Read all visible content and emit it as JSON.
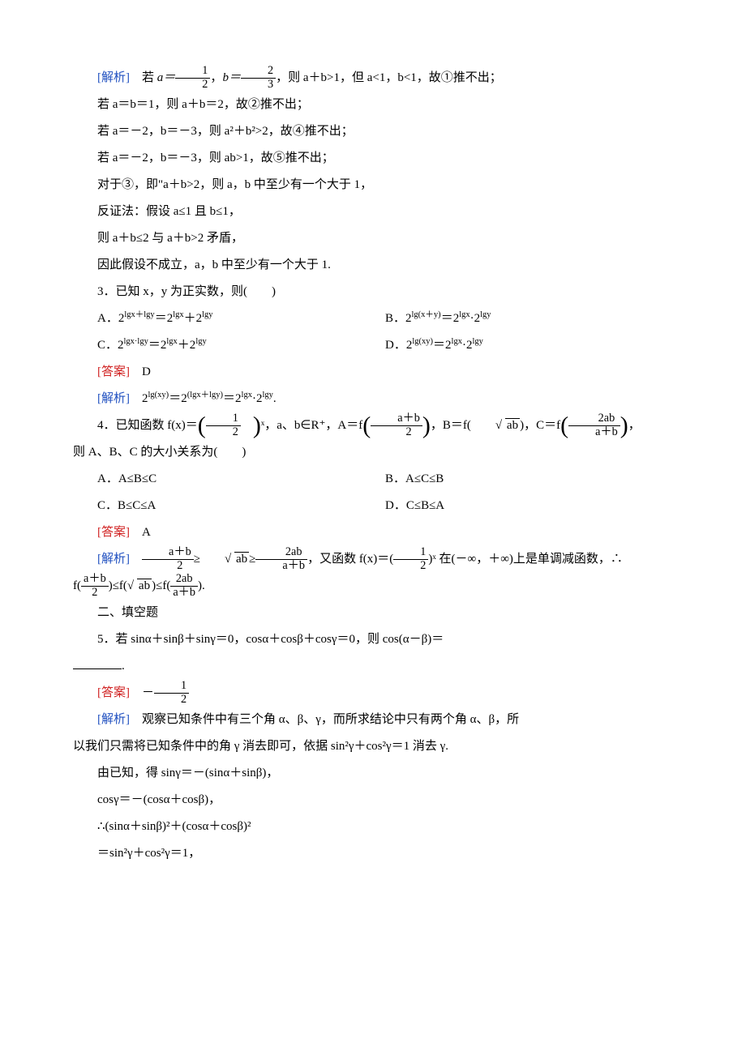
{
  "labels": {
    "analysis": "[解析]",
    "answer": "[答案]"
  },
  "q2_analysis": {
    "l1_pre": "若 ",
    "l1_a_eq": "a＝",
    "l1_frac1_num": "1",
    "l1_frac1_den": "2",
    "l1_sep": "，",
    "l1_b_eq": "b＝",
    "l1_frac2_num": "2",
    "l1_frac2_den": "3",
    "l1_post": "，则 a＋b>1，但 a<1，b<1，故①推不出；",
    "l2": "若 a＝b＝1，则 a＋b＝2，故②推不出；",
    "l3": "若 a＝－2，b＝－3，则 a²＋b²>2，故④推不出；",
    "l4": "若 a＝－2，b＝－3，则 ab>1，故⑤推不出；",
    "l5": "对于③，即\"a＋b>2，则 a，b 中至少有一个大于 1，",
    "l6": "反证法：假设 a≤1 且 b≤1，",
    "l7": "则 a＋b≤2 与 a＋b>2 矛盾，",
    "l8": "因此假设不成立，a，b 中至少有一个大于 1."
  },
  "q3": {
    "stem": "3．已知 x，y 为正实数，则(　　)",
    "optA_pre": "A．2",
    "optA_sup1": "lgx＋lgy",
    "optA_mid": "＝2",
    "optA_sup2": "lgx",
    "optA_plus": "＋2",
    "optA_sup3": "lgy",
    "optB_pre": "B．2",
    "optB_sup1": "lg(x＋y)",
    "optB_mid": "＝2",
    "optB_sup2": "lgx",
    "optB_dot": "·2",
    "optB_sup3": "lgy",
    "optC_pre": "C．2",
    "optC_sup1": "lgx·lgy",
    "optC_mid": "＝2",
    "optC_sup2": "lgx",
    "optC_plus": "＋2",
    "optC_sup3": "lgy",
    "optD_pre": "D．2",
    "optD_sup1": "lg(xy)",
    "optD_mid": "＝2",
    "optD_sup2": "lgx",
    "optD_dot": "·2",
    "optD_sup3": "lgy",
    "answer": "D",
    "exp_pre": "2",
    "exp_sup1": "lg(xy)",
    "exp_eq1": "＝2",
    "exp_sup2": "(lgx＋lgy)",
    "exp_eq2": "＝2",
    "exp_sup3": "lgx",
    "exp_dot": "·2",
    "exp_sup4": "lgy",
    "exp_end": "."
  },
  "q4": {
    "stem_pre": "4．已知函数 f(x)＝",
    "frac_half_num": "1",
    "frac_half_den": "2",
    "stem_mid1": "ˣ，a、b∈R⁺，A＝f",
    "fracA_num": "a＋b",
    "fracA_den": "2",
    "stem_mid2": "，B＝f(",
    "sqrt_ab": "ab",
    "stem_mid3": ")，C＝f",
    "fracC_num": "2ab",
    "fracC_den": "a＋b",
    "stem_end": "，",
    "line2": "则 A、B、C 的大小关系为(　　)",
    "optA": "A．A≤B≤C",
    "optB": "B．A≤C≤B",
    "optC": "C．B≤C≤A",
    "optD": "D．C≤B≤A",
    "answer": "A",
    "exp_frac1_num": "a＋b",
    "exp_frac1_den": "2",
    "exp_ge1": "≥",
    "exp_sqrt": "ab",
    "exp_ge2": "≥",
    "exp_frac2_num": "2ab",
    "exp_frac2_den": "a＋b",
    "exp_mid": "，又函数 f(x)＝(",
    "exp_frac3_num": "1",
    "exp_frac3_den": "2",
    "exp_mid2": ")ˣ 在(－∞，＋∞)上是单调减函数，∴",
    "exp2_pre": "f(",
    "exp2_f1_num": "a＋b",
    "exp2_f1_den": "2",
    "exp2_le1": ")≤f(",
    "exp2_sqrt": "ab",
    "exp2_le2": ")≤f(",
    "exp2_f3_num": "2ab",
    "exp2_f3_den": "a＋b",
    "exp2_end": ")."
  },
  "section2": "二、填空题",
  "q5": {
    "stem_l1": "5．若 sinα＋sinβ＋sinγ＝0，cosα＋cosβ＋cosγ＝0，则 cos(α－β)＝",
    "stem_l2_end": ".",
    "ans_pre": "－",
    "ans_num": "1",
    "ans_den": "2",
    "exp_l1": "观察已知条件中有三个角 α、β、γ，而所求结论中只有两个角 α、β，所",
    "exp_l2": "以我们只需将已知条件中的角 γ 消去即可，依据 sin²γ＋cos²γ＝1 消去 γ.",
    "exp_l3": "由已知，得 sinγ＝－(sinα＋sinβ)，",
    "exp_l4": "cosγ＝－(cosα＋cosβ)，",
    "exp_l5": "∴(sinα＋sinβ)²＋(cosα＋cosβ)²",
    "exp_l6": "＝sin²γ＋cos²γ＝1，"
  }
}
